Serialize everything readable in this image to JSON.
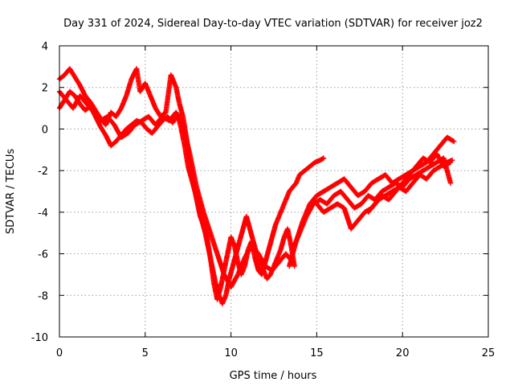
{
  "chart_data": {
    "type": "scatter",
    "title": "Day 331 of 2024, Sidereal Day-to-day VTEC variation (SDTVAR) for receiver joz2",
    "xlabel": "GPS time / hours",
    "ylabel": "SDTVAR / TECUs",
    "xlim": [
      0,
      25
    ],
    "ylim": [
      -10,
      4
    ],
    "xticks": [
      "0",
      "5",
      "10",
      "15",
      "20",
      "25"
    ],
    "yticks": [
      "-10",
      "-8",
      "-6",
      "-4",
      "-2",
      "0",
      "2",
      "4"
    ],
    "grid": true,
    "marker": "plus",
    "color": "#ff0000",
    "series": [
      {
        "x": [
          0.0,
          0.3,
          0.6,
          0.9,
          1.2,
          1.5,
          1.8,
          2.1,
          2.4,
          2.7,
          3.0,
          3.3,
          3.6,
          3.9,
          4.2,
          4.5,
          4.7,
          5.0,
          5.3,
          5.6,
          5.9,
          6.2,
          6.5,
          6.8,
          7.0,
          7.2,
          7.4,
          7.6,
          7.8,
          8.0,
          8.2,
          8.4,
          8.6,
          8.8,
          9.0,
          9.2,
          9.4,
          9.6,
          9.8,
          10.0,
          10.2,
          10.4,
          10.6,
          10.8,
          11.0,
          11.2,
          11.4,
          11.6,
          11.8,
          12.0,
          12.2,
          12.4,
          12.6,
          12.8,
          13.0,
          13.2,
          13.4,
          13.6,
          13.8,
          14.0,
          14.3,
          14.6,
          14.9,
          15.2,
          15.4
        ],
        "y": [
          2.4,
          2.6,
          2.9,
          2.5,
          2.1,
          1.6,
          1.3,
          0.9,
          0.5,
          0.2,
          0.8,
          0.6,
          1.0,
          1.6,
          2.4,
          2.9,
          1.8,
          2.2,
          1.6,
          1.0,
          0.6,
          0.8,
          2.6,
          2.0,
          1.2,
          0.6,
          -0.4,
          -1.5,
          -2.6,
          -3.4,
          -4.2,
          -4.6,
          -5.2,
          -6.2,
          -7.4,
          -8.2,
          -7.6,
          -6.8,
          -6.0,
          -5.2,
          -5.6,
          -6.4,
          -7.0,
          -6.6,
          -5.8,
          -5.4,
          -6.2,
          -6.8,
          -7.0,
          -6.4,
          -5.8,
          -5.2,
          -4.6,
          -4.2,
          -3.8,
          -3.4,
          -3.0,
          -2.8,
          -2.6,
          -2.2,
          -2.0,
          -1.8,
          -1.6,
          -1.5,
          -1.4
        ]
      },
      {
        "x": [
          0.0,
          0.3,
          0.6,
          0.9,
          1.2,
          1.5,
          1.8,
          2.1,
          2.4,
          2.7,
          3.0,
          3.3,
          3.6,
          3.9,
          4.2,
          4.5,
          4.8,
          5.1,
          5.4,
          5.7,
          6.0,
          6.3,
          6.6,
          6.9,
          7.1,
          7.3,
          7.5,
          7.7,
          7.9,
          8.1,
          8.3,
          8.5,
          8.7,
          8.9,
          9.1,
          9.3,
          9.5,
          9.7,
          9.9,
          10.1,
          10.3,
          10.5,
          10.7,
          10.9,
          11.1,
          11.3,
          11.5,
          11.7,
          11.9,
          12.1,
          12.3,
          12.5,
          12.7,
          12.9,
          13.1,
          13.3,
          13.5,
          13.7
        ],
        "y": [
          1.0,
          1.4,
          1.8,
          1.6,
          1.2,
          0.9,
          1.1,
          0.6,
          0.1,
          -0.3,
          -0.8,
          -0.6,
          -0.3,
          0.0,
          0.2,
          0.4,
          0.3,
          0.0,
          -0.2,
          0.1,
          0.4,
          0.6,
          0.3,
          0.7,
          0.0,
          -0.8,
          -1.8,
          -2.4,
          -3.0,
          -3.6,
          -4.4,
          -5.0,
          -5.8,
          -6.6,
          -7.4,
          -8.0,
          -8.4,
          -8.0,
          -7.2,
          -6.6,
          -6.0,
          -5.4,
          -4.8,
          -4.2,
          -4.8,
          -5.4,
          -6.0,
          -6.4,
          -6.8,
          -7.2,
          -7.0,
          -6.6,
          -6.2,
          -5.8,
          -5.2,
          -4.8,
          -5.6,
          -6.6
        ]
      },
      {
        "x": [
          0.0,
          0.4,
          0.8,
          1.2,
          1.6,
          2.0,
          2.4,
          2.8,
          3.2,
          3.6,
          4.0,
          4.4,
          4.8,
          5.2,
          5.6,
          6.0,
          6.4,
          6.8,
          7.2,
          7.6,
          8.0,
          8.4,
          8.8,
          9.2,
          9.6,
          10.0,
          10.4,
          10.8,
          11.2,
          11.6,
          12.0,
          12.4,
          12.8,
          13.2,
          13.6
        ],
        "y": [
          1.8,
          1.4,
          1.0,
          1.6,
          1.2,
          0.8,
          0.4,
          0.6,
          0.2,
          -0.4,
          -0.2,
          0.2,
          0.4,
          0.6,
          0.2,
          0.6,
          0.4,
          0.8,
          0.2,
          -1.2,
          -2.8,
          -4.0,
          -5.0,
          -6.0,
          -7.0,
          -7.6,
          -7.0,
          -6.2,
          -5.6,
          -6.0,
          -6.6,
          -6.8,
          -6.4,
          -6.0,
          -6.4
        ]
      },
      {
        "x": [
          13.4,
          13.8,
          14.2,
          14.6,
          15.0,
          15.4,
          15.8,
          16.2,
          16.6,
          17.0,
          17.4,
          17.8,
          18.2,
          18.6,
          19.0,
          19.4,
          19.8,
          20.2,
          20.6,
          21.0,
          21.4,
          21.8,
          22.2,
          22.6,
          23.0
        ],
        "y": [
          -6.6,
          -5.4,
          -4.4,
          -3.6,
          -3.2,
          -3.0,
          -2.8,
          -2.6,
          -2.4,
          -2.8,
          -3.2,
          -3.0,
          -2.6,
          -2.4,
          -2.2,
          -2.6,
          -2.4,
          -2.2,
          -2.0,
          -1.8,
          -1.6,
          -1.2,
          -0.8,
          -0.4,
          -0.6
        ]
      },
      {
        "x": [
          13.6,
          14.0,
          14.4,
          14.8,
          15.2,
          15.6,
          16.0,
          16.4,
          16.8,
          17.2,
          17.6,
          18.0,
          18.4,
          18.8,
          19.2,
          19.6,
          20.0,
          20.4,
          20.8,
          21.2,
          21.6,
          22.0,
          22.4,
          22.8
        ],
        "y": [
          -5.8,
          -5.0,
          -4.2,
          -3.6,
          -3.4,
          -3.6,
          -3.2,
          -3.0,
          -3.4,
          -3.8,
          -3.6,
          -3.2,
          -3.4,
          -3.0,
          -2.8,
          -2.6,
          -2.8,
          -2.4,
          -2.2,
          -2.0,
          -1.8,
          -1.6,
          -1.4,
          -2.6
        ]
      },
      {
        "x": [
          15.0,
          15.4,
          15.8,
          16.2,
          16.6,
          17.0,
          17.4,
          17.8,
          18.2,
          18.6,
          19.0,
          19.4,
          19.8,
          20.2,
          20.6,
          21.0,
          21.4,
          21.8,
          22.2,
          22.6,
          22.9
        ],
        "y": [
          -3.6,
          -4.0,
          -3.8,
          -3.6,
          -3.8,
          -4.8,
          -4.4,
          -4.0,
          -3.8,
          -3.4,
          -3.2,
          -3.0,
          -2.8,
          -3.0,
          -2.6,
          -2.2,
          -2.4,
          -2.0,
          -1.8,
          -1.6,
          -1.5
        ]
      },
      {
        "x": [
          18.0,
          18.4,
          18.8,
          19.2,
          19.6,
          20.0,
          20.4,
          20.8,
          21.2,
          21.6,
          22.0,
          22.4,
          22.8
        ],
        "y": [
          -4.0,
          -3.6,
          -3.2,
          -3.4,
          -3.0,
          -2.6,
          -2.2,
          -1.8,
          -1.4,
          -1.6,
          -1.2,
          -1.8,
          -1.6
        ]
      }
    ]
  }
}
